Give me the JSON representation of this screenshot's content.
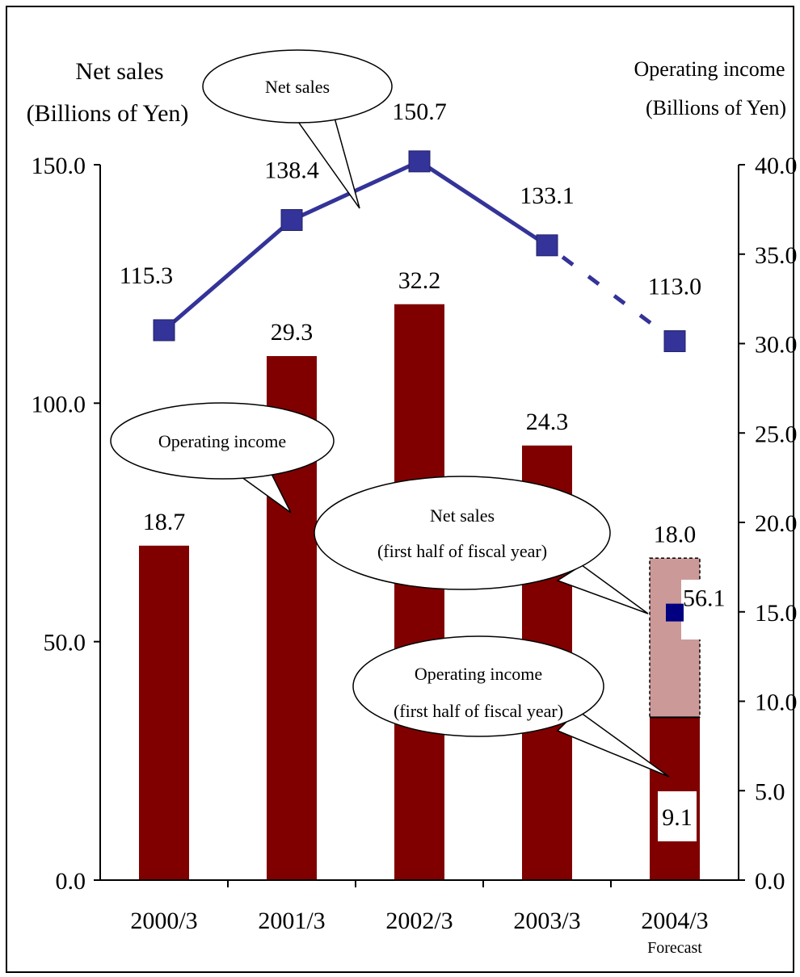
{
  "chart_data": {
    "type": "bar",
    "categories": [
      "2000/3",
      "2001/3",
      "2002/3",
      "2003/3",
      "2004/3"
    ],
    "category_note": "Forecast",
    "left_axis": {
      "title_line1": "Net sales",
      "title_line2": "(Billions of Yen)",
      "range": [
        0,
        150
      ],
      "ticks": [
        "0.0",
        "50.0",
        "100.0",
        "150.0"
      ]
    },
    "right_axis": {
      "title_line1": "Operating income",
      "title_line2": "(Billions of  Yen)",
      "range": [
        0,
        40
      ],
      "ticks": [
        "0.0",
        "5.0",
        "10.0",
        "15.0",
        "20.0",
        "25.0",
        "30.0",
        "35.0",
        "40.0"
      ]
    },
    "operating_income": {
      "values": [
        18.7,
        29.3,
        32.2,
        24.3,
        18.0
      ],
      "labels": [
        "18.7",
        "29.3",
        "32.2",
        "24.3",
        "18.0"
      ],
      "color": "#800000",
      "forecast_color": "#cc9999"
    },
    "operating_income_first_half": {
      "value": 9.1,
      "label": "9.1"
    },
    "net_sales": {
      "values": [
        115.3,
        138.4,
        150.7,
        133.1,
        113.0
      ],
      "labels": [
        "115.3",
        "138.4",
        "150.7",
        "133.1",
        "113.0"
      ],
      "color": "#333399"
    },
    "net_sales_first_half": {
      "value": 56.1,
      "label": "56.1",
      "color": "#000080"
    },
    "callouts": {
      "net_sales": "Net sales",
      "operating_income": "Operating income",
      "ns_half_line1": "Net sales",
      "ns_half_line2": "(first half of fiscal year)",
      "oi_half_line1": "Operating income",
      "oi_half_line2": "(first half of fiscal year)"
    }
  }
}
